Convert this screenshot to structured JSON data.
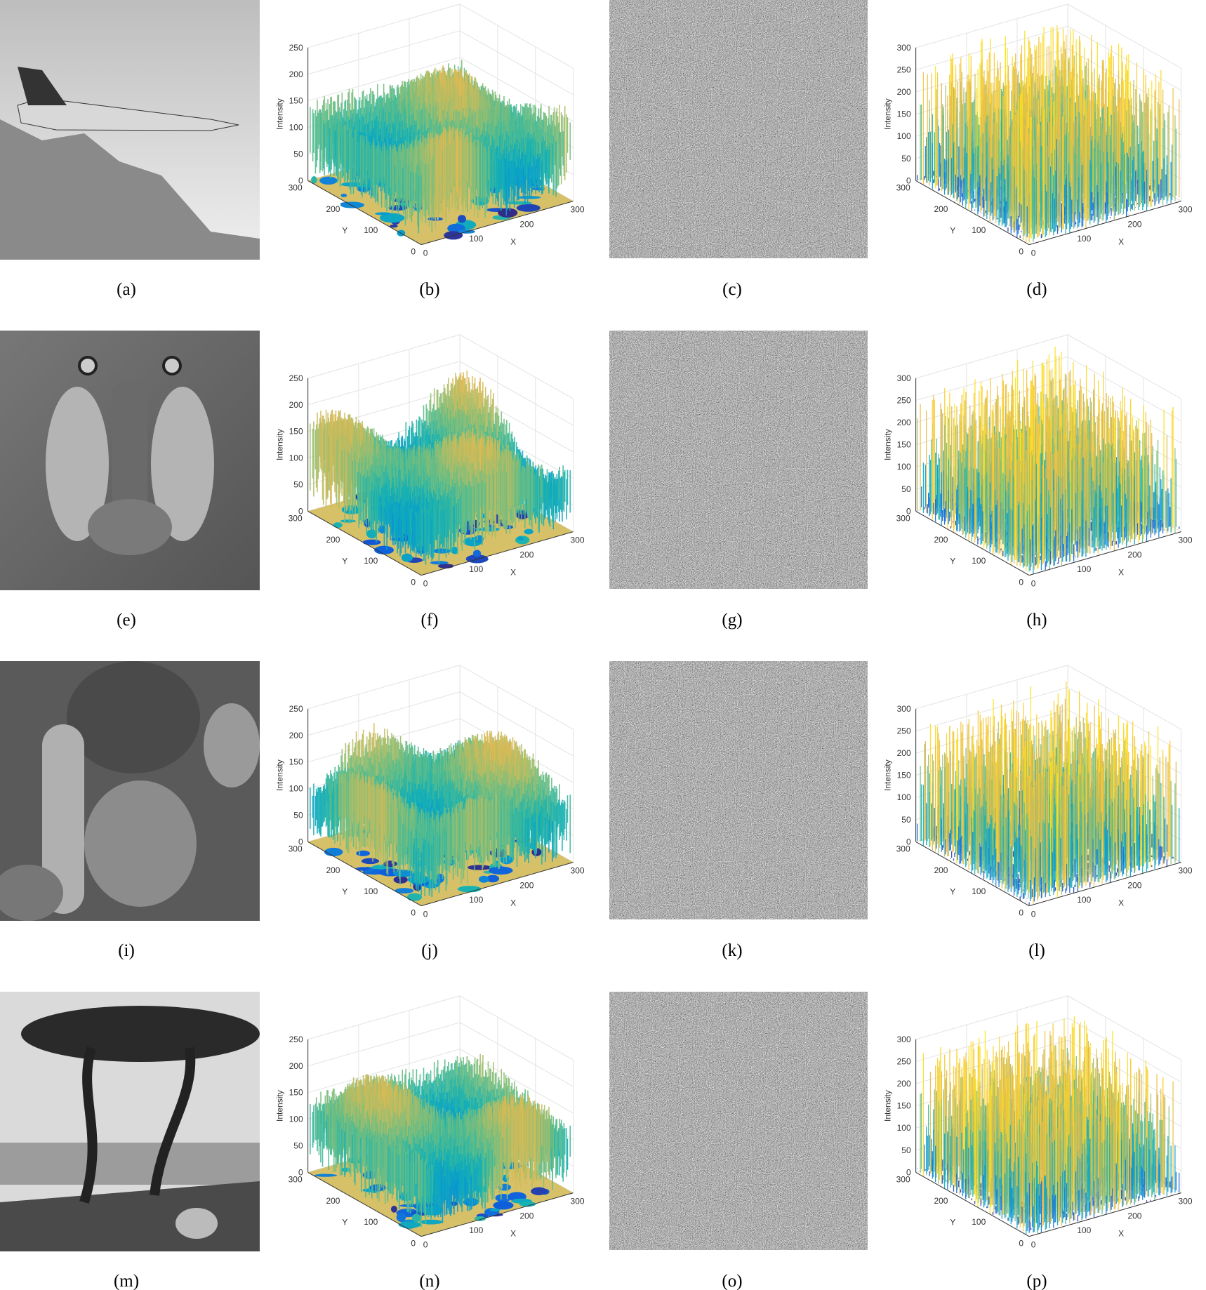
{
  "panels": [
    {
      "caption": "(a)"
    },
    {
      "caption": "(b)",
      "z_label": "Intensity",
      "z_ticks": [
        0,
        50,
        100,
        150,
        200,
        250
      ],
      "y_label": "Y",
      "y_ticks": [
        0,
        100,
        200,
        300
      ],
      "x_label": "X",
      "x_ticks": [
        0,
        100,
        200,
        300
      ]
    },
    {
      "caption": "(c)"
    },
    {
      "caption": "(d)",
      "z_label": "Intensity",
      "z_ticks": [
        0,
        50,
        100,
        150,
        200,
        250,
        300
      ],
      "y_label": "Y",
      "y_ticks": [
        0,
        100,
        200,
        300
      ],
      "x_label": "X",
      "x_ticks": [
        0,
        100,
        200,
        300
      ]
    },
    {
      "caption": "(e)"
    },
    {
      "caption": "(f)",
      "z_label": "Intensity",
      "z_ticks": [
        0,
        50,
        100,
        150,
        200,
        250
      ],
      "y_label": "Y",
      "y_ticks": [
        0,
        100,
        200,
        300
      ],
      "x_label": "X",
      "x_ticks": [
        0,
        100,
        200,
        300
      ]
    },
    {
      "caption": "(g)"
    },
    {
      "caption": "(h)",
      "z_label": "Intensity",
      "z_ticks": [
        0,
        50,
        100,
        150,
        200,
        250,
        300
      ],
      "y_label": "Y",
      "y_ticks": [
        0,
        100,
        200,
        300
      ],
      "x_label": "X",
      "x_ticks": [
        0,
        100,
        200,
        300
      ]
    },
    {
      "caption": "(i)"
    },
    {
      "caption": "(j)",
      "z_label": "Intensity",
      "z_ticks": [
        0,
        50,
        100,
        150,
        200,
        250
      ],
      "y_label": "Y",
      "y_ticks": [
        0,
        100,
        200,
        300
      ],
      "x_label": "X",
      "x_ticks": [
        0,
        100,
        200,
        300
      ]
    },
    {
      "caption": "(k)"
    },
    {
      "caption": "(l)",
      "z_label": "Intensity",
      "z_ticks": [
        0,
        50,
        100,
        150,
        200,
        250,
        300
      ],
      "y_label": "Y",
      "y_ticks": [
        0,
        100,
        200,
        300
      ],
      "x_label": "X",
      "x_ticks": [
        0,
        100,
        200,
        300
      ]
    },
    {
      "caption": "(m)"
    },
    {
      "caption": "(n)",
      "z_label": "Intensity",
      "z_ticks": [
        0,
        50,
        100,
        150,
        200,
        250
      ],
      "y_label": "Y",
      "y_ticks": [
        0,
        100,
        200,
        300
      ],
      "x_label": "X",
      "x_ticks": [
        0,
        100,
        200,
        300
      ]
    },
    {
      "caption": "(o)"
    },
    {
      "caption": "(p)",
      "z_label": "Intensity",
      "z_ticks": [
        0,
        50,
        100,
        150,
        200,
        250,
        300
      ],
      "y_label": "Y",
      "y_ticks": [
        0,
        100,
        200,
        300
      ],
      "x_label": "X",
      "x_ticks": [
        0,
        100,
        200,
        300
      ]
    }
  ]
}
